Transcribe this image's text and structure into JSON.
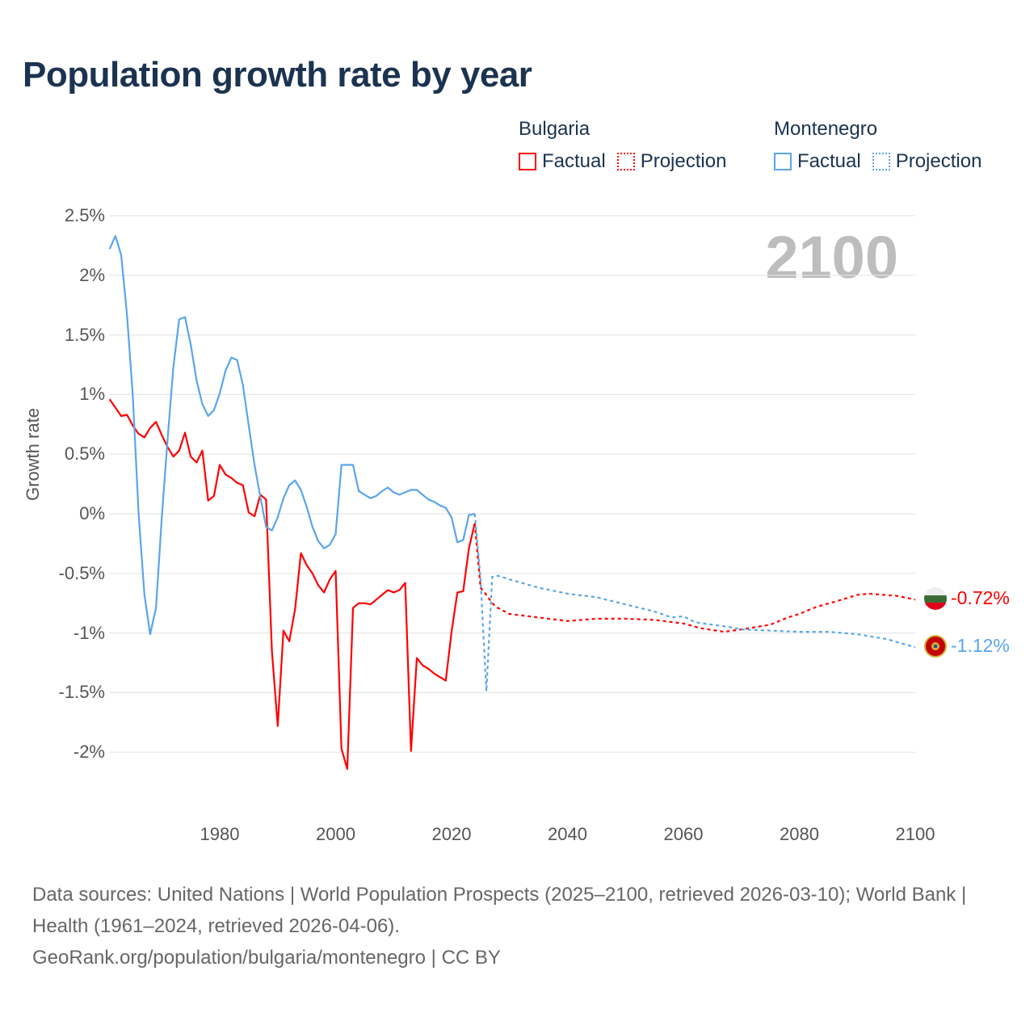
{
  "title": "Population growth rate by year",
  "legend": {
    "groups": [
      {
        "name": "Bulgaria",
        "factual": "Factual",
        "projection": "Projection",
        "color": "#ff0000"
      },
      {
        "name": "Montenegro",
        "factual": "Factual",
        "projection": "Projection",
        "color": "#5aa5ec"
      }
    ]
  },
  "current_year_label": "2100",
  "end_labels": {
    "bulgaria": "-0.72%",
    "montenegro": "-1.12%"
  },
  "footer": {
    "sources": "Data sources: United Nations | World Population Prospects (2025–2100, retrieved 2026-03-10); World Bank | Health (1961–2024, retrieved 2026-04-06).",
    "attribution": "GeoRank.org/population/bulgaria/montenegro | CC BY"
  },
  "chart_data": {
    "type": "line",
    "title": "Population growth rate by year",
    "xlabel": "",
    "ylabel": "Growth rate",
    "xlim": [
      1961,
      2100
    ],
    "ylim": [
      -2.35,
      2.5
    ],
    "x_ticks": [
      "1980",
      "2000",
      "2020",
      "2040",
      "2060",
      "2080",
      "2100"
    ],
    "y_ticks": [
      {
        "v": 2.5,
        "label": "2.5%"
      },
      {
        "v": 2,
        "label": "2%"
      },
      {
        "v": 1.5,
        "label": "1.5%"
      },
      {
        "v": 1,
        "label": "1%"
      },
      {
        "v": 0.5,
        "label": "0.5%"
      },
      {
        "v": 0,
        "label": "0%"
      },
      {
        "v": -0.5,
        "label": "-0.5%"
      },
      {
        "v": -1,
        "label": "-1%"
      },
      {
        "v": -1.5,
        "label": "-1.5%"
      },
      {
        "v": -2,
        "label": "-2%"
      }
    ],
    "grid": true,
    "legend_position": "top-right",
    "series": [
      {
        "name": "Bulgaria Factual",
        "color": "#ff0000",
        "dashed": false,
        "x_start": 1961,
        "values": [
          0.96,
          0.89,
          0.82,
          0.83,
          0.74,
          0.67,
          0.64,
          0.72,
          0.77,
          0.66,
          0.56,
          0.48,
          0.53,
          0.68,
          0.48,
          0.43,
          0.53,
          0.11,
          0.15,
          0.41,
          0.33,
          0.3,
          0.26,
          0.24,
          0.01,
          -0.02,
          0.16,
          0.12,
          -1.15,
          -1.78,
          -0.98,
          -1.07,
          -0.8,
          -0.33,
          -0.43,
          -0.5,
          -0.6,
          -0.66,
          -0.55,
          -0.48,
          -1.97,
          -2.14,
          -0.79,
          -0.75,
          -0.75,
          -0.76,
          -0.72,
          -0.68,
          -0.64,
          -0.66,
          -0.64,
          -0.58,
          -1.99,
          -1.21,
          -1.27,
          -1.3,
          -1.34,
          -1.37,
          -1.4,
          -0.99,
          -0.66,
          -0.65,
          -0.29,
          -0.08
        ]
      },
      {
        "name": "Bulgaria Projection",
        "color": "#ff0000",
        "dashed": true,
        "points": [
          [
            2024,
            -0.08
          ],
          [
            2025,
            -0.62
          ],
          [
            2026,
            -0.68
          ],
          [
            2027,
            -0.75
          ],
          [
            2028,
            -0.79
          ],
          [
            2030,
            -0.84
          ],
          [
            2035,
            -0.87
          ],
          [
            2040,
            -0.9
          ],
          [
            2045,
            -0.88
          ],
          [
            2050,
            -0.88
          ],
          [
            2055,
            -0.89
          ],
          [
            2060,
            -0.92
          ],
          [
            2063,
            -0.96
          ],
          [
            2067,
            -0.99
          ],
          [
            2070,
            -0.97
          ],
          [
            2075,
            -0.93
          ],
          [
            2078,
            -0.87
          ],
          [
            2080,
            -0.84
          ],
          [
            2083,
            -0.78
          ],
          [
            2086,
            -0.74
          ],
          [
            2090,
            -0.68
          ],
          [
            2092,
            -0.67
          ],
          [
            2097,
            -0.69
          ],
          [
            2100,
            -0.72
          ]
        ]
      },
      {
        "name": "Montenegro Factual",
        "color": "#5aa5ec",
        "dashed": false,
        "x_start": 1961,
        "values": [
          2.22,
          2.33,
          2.17,
          1.67,
          0.99,
          0.0,
          -0.68,
          -1.01,
          -0.79,
          -0.03,
          0.62,
          1.23,
          1.63,
          1.65,
          1.42,
          1.12,
          0.92,
          0.82,
          0.87,
          1.01,
          1.2,
          1.31,
          1.29,
          1.08,
          0.74,
          0.41,
          0.14,
          -0.11,
          -0.14,
          -0.03,
          0.13,
          0.24,
          0.28,
          0.2,
          0.06,
          -0.11,
          -0.23,
          -0.29,
          -0.26,
          -0.17,
          0.41,
          0.41,
          0.41,
          0.19,
          0.16,
          0.13,
          0.15,
          0.19,
          0.22,
          0.18,
          0.16,
          0.18,
          0.2,
          0.2,
          0.16,
          0.12,
          0.1,
          0.07,
          0.05,
          -0.03,
          -0.24,
          -0.22,
          -0.01,
          0.0
        ]
      },
      {
        "name": "Montenegro Projection",
        "color": "#5aa5ec",
        "dashed": true,
        "points": [
          [
            2024,
            0.0
          ],
          [
            2025,
            -0.55
          ],
          [
            2026,
            -1.49
          ],
          [
            2027,
            -0.53
          ],
          [
            2028,
            -0.52
          ],
          [
            2030,
            -0.55
          ],
          [
            2035,
            -0.62
          ],
          [
            2040,
            -0.67
          ],
          [
            2045,
            -0.7
          ],
          [
            2050,
            -0.76
          ],
          [
            2055,
            -0.82
          ],
          [
            2058,
            -0.87
          ],
          [
            2060,
            -0.86
          ],
          [
            2062,
            -0.91
          ],
          [
            2065,
            -0.93
          ],
          [
            2068,
            -0.95
          ],
          [
            2070,
            -0.97
          ],
          [
            2075,
            -0.98
          ],
          [
            2080,
            -0.99
          ],
          [
            2085,
            -0.99
          ],
          [
            2090,
            -1.01
          ],
          [
            2095,
            -1.05
          ],
          [
            2100,
            -1.12
          ]
        ]
      }
    ]
  }
}
